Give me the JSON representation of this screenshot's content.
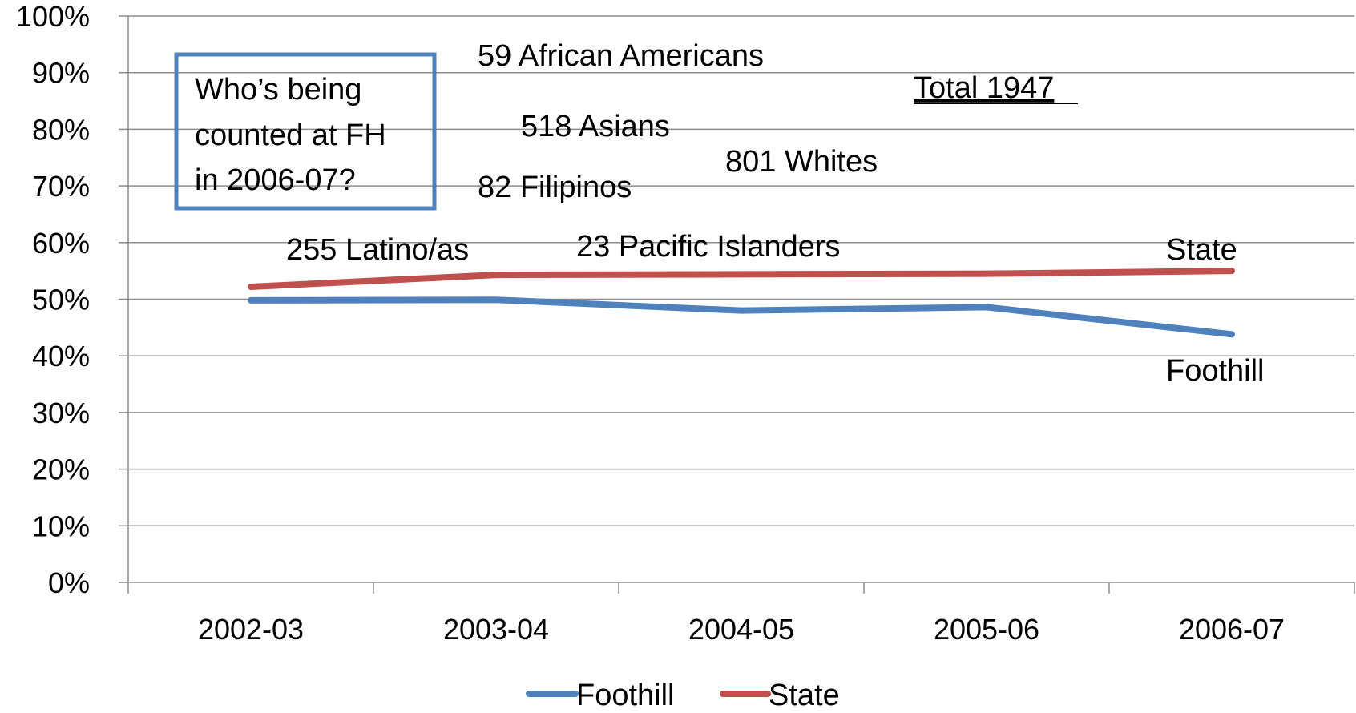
{
  "chart_data": {
    "type": "line",
    "categories": [
      "2002-03",
      "2003-04",
      "2004-05",
      "2005-06",
      "2006-07"
    ],
    "y_ticks": [
      "0%",
      "10%",
      "20%",
      "30%",
      "40%",
      "50%",
      "60%",
      "70%",
      "80%",
      "90%",
      "100%"
    ],
    "ylim": [
      0,
      100
    ],
    "grid": true,
    "legend_position": "bottom",
    "series": [
      {
        "name": "Foothill",
        "values": [
          49.8,
          49.9,
          48.0,
          48.6,
          43.8
        ],
        "color": "#4F81BD"
      },
      {
        "name": "State",
        "values": [
          52.2,
          54.3,
          54.4,
          54.5,
          55.0
        ],
        "color": "#C0504D"
      }
    ],
    "series_end_labels": [
      "Foothill",
      "State"
    ],
    "annotation_box": "Who’s being counted at FH in 2006-07?",
    "annotation_box_lines": [
      "Who’s being",
      "counted at FH",
      "in 2006-07?"
    ],
    "box_color": "#4F81BD",
    "annotations": {
      "african_americans": "59 African Americans",
      "asians": "518 Asians",
      "filipinos": "82 Filipinos",
      "whites": "801 Whites",
      "latinos": "255 Latino/as",
      "pacific_islanders": "23 Pacific Islanders",
      "total": "Total 1947"
    }
  }
}
